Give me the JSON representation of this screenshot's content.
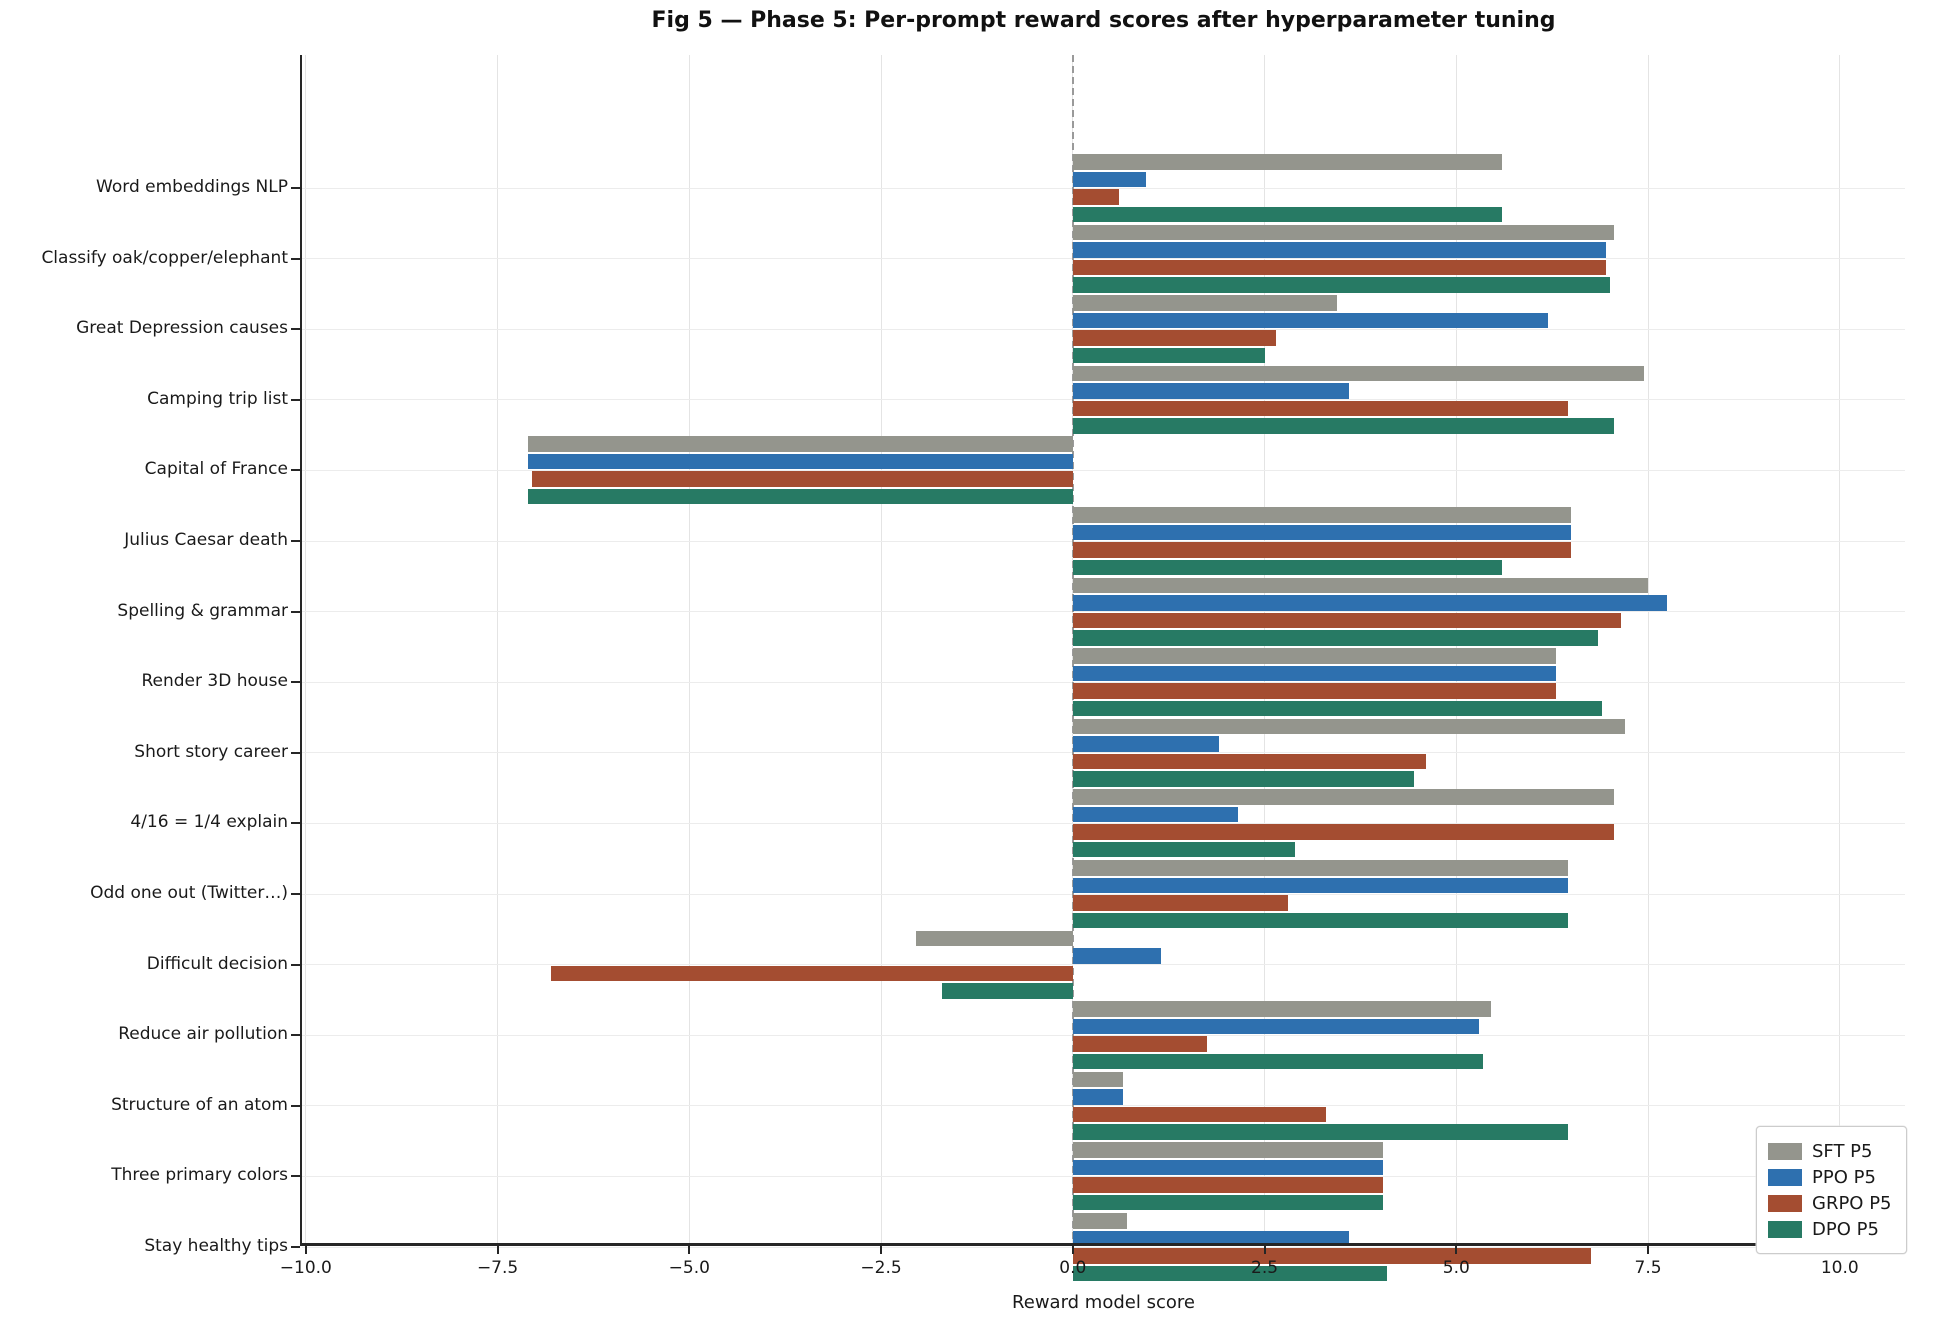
{
  "title": "Fig 5 — Phase 5: Per-prompt reward scores after hyperparameter tuning",
  "xlabel": "Reward model score",
  "chart_data": {
    "type": "bar",
    "orientation": "horizontal-grouped",
    "title": "Fig 5 — Phase 5: Per-prompt reward scores after hyperparameter tuning",
    "xlabel": "Reward model score",
    "xlim": [
      -10.05,
      10.85
    ],
    "xticks": [
      -10,
      -7.5,
      -5,
      -2.5,
      0,
      2.5,
      5,
      7.5,
      10
    ],
    "xtick_labels": [
      "−10.0",
      "−7.5",
      "−5.0",
      "−2.5",
      "0.0",
      "2.5",
      "5.0",
      "7.5",
      "10.0"
    ],
    "grid": true,
    "zero_line_dashed": true,
    "legend_position": "lower right",
    "categories": [
      "Word embeddings NLP",
      "Classify oak/copper/elephant",
      "Great Depression causes",
      "Camping trip list",
      "Capital of France",
      "Julius Caesar death",
      "Spelling & grammar",
      "Render 3D house",
      "Short story career",
      "4/16 = 1/4 explain",
      "Odd one out (Twitter…)",
      "Difficult decision",
      "Reduce air pollution",
      "Structure of an atom",
      "Three primary colors",
      "Stay healthy tips"
    ],
    "series": [
      {
        "name": "SFT P5",
        "color": "#94958d",
        "values": [
          5.6,
          7.05,
          3.45,
          7.45,
          -7.1,
          6.5,
          7.5,
          6.3,
          7.2,
          7.05,
          6.45,
          -2.05,
          5.45,
          0.65,
          4.05,
          0.7
        ]
      },
      {
        "name": "PPO P5",
        "color": "#2e70af",
        "values": [
          0.95,
          6.95,
          6.2,
          3.6,
          -7.1,
          6.5,
          7.75,
          6.3,
          1.9,
          2.15,
          6.45,
          1.15,
          5.3,
          0.65,
          4.05,
          3.6
        ]
      },
      {
        "name": "GRPO P5",
        "color": "#a44d31",
        "values": [
          0.6,
          6.95,
          2.65,
          6.45,
          -7.05,
          6.5,
          7.15,
          6.3,
          4.6,
          7.05,
          2.8,
          -6.8,
          1.75,
          3.3,
          4.05,
          6.75
        ]
      },
      {
        "name": "DPO P5",
        "color": "#277a64",
        "values": [
          5.6,
          7.0,
          2.5,
          7.05,
          -7.1,
          5.6,
          6.85,
          6.9,
          4.45,
          2.9,
          6.45,
          -1.7,
          5.35,
          6.45,
          4.05,
          4.1
        ]
      }
    ]
  },
  "legend": {
    "items": [
      "SFT P5",
      "PPO P5",
      "GRPO P5",
      "DPO P5"
    ]
  }
}
